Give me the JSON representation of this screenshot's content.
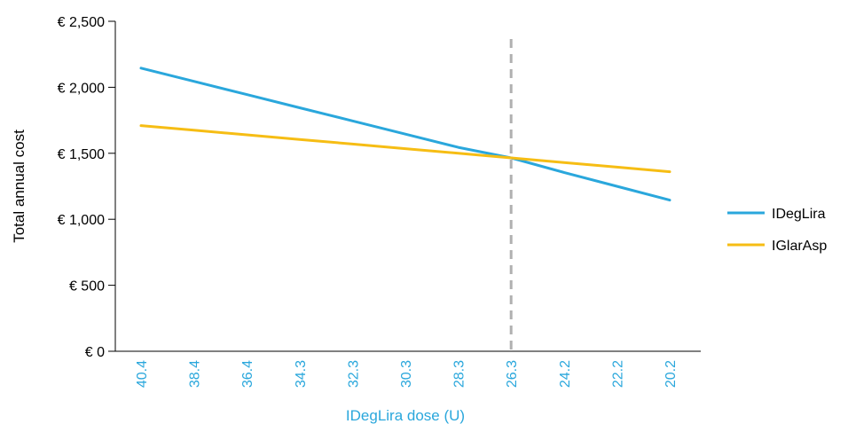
{
  "chart_data": {
    "type": "line",
    "title": "",
    "xlabel": "IDegLira dose (U)",
    "ylabel": "Total annual cost",
    "categories": [
      "40.4",
      "38.4",
      "36.4",
      "34.3",
      "32.3",
      "30.3",
      "28.3",
      "26.3",
      "24.2",
      "22.2",
      "20.2"
    ],
    "ylim": [
      0,
      2500
    ],
    "yticks": [
      0,
      500,
      1000,
      1500,
      2000,
      2500
    ],
    "ytick_labels": [
      "€ 0",
      "€ 500",
      "€ 1,000",
      "€ 1,500",
      "€ 2,000",
      "€ 2,500"
    ],
    "series": [
      {
        "name": "IDegLira",
        "color": "#2aa7dc",
        "values": [
          2145,
          2045,
          1945,
          1845,
          1745,
          1645,
          1545,
          1465,
          1355,
          1250,
          1145
        ]
      },
      {
        "name": "IGlarAsp",
        "color": "#f6bd14",
        "values": [
          1710,
          1675,
          1640,
          1605,
          1570,
          1535,
          1500,
          1465,
          1430,
          1395,
          1360
        ]
      }
    ],
    "reference_line": {
      "category": "26.3",
      "style": "dashed",
      "color": "#b0b0b0"
    },
    "legend": {
      "position": "right",
      "entries": [
        "IDegLira",
        "IGlarAsp"
      ]
    },
    "x_tick_color": "#2aa7dc",
    "xlabel_color": "#2aa7dc",
    "grid": false
  }
}
